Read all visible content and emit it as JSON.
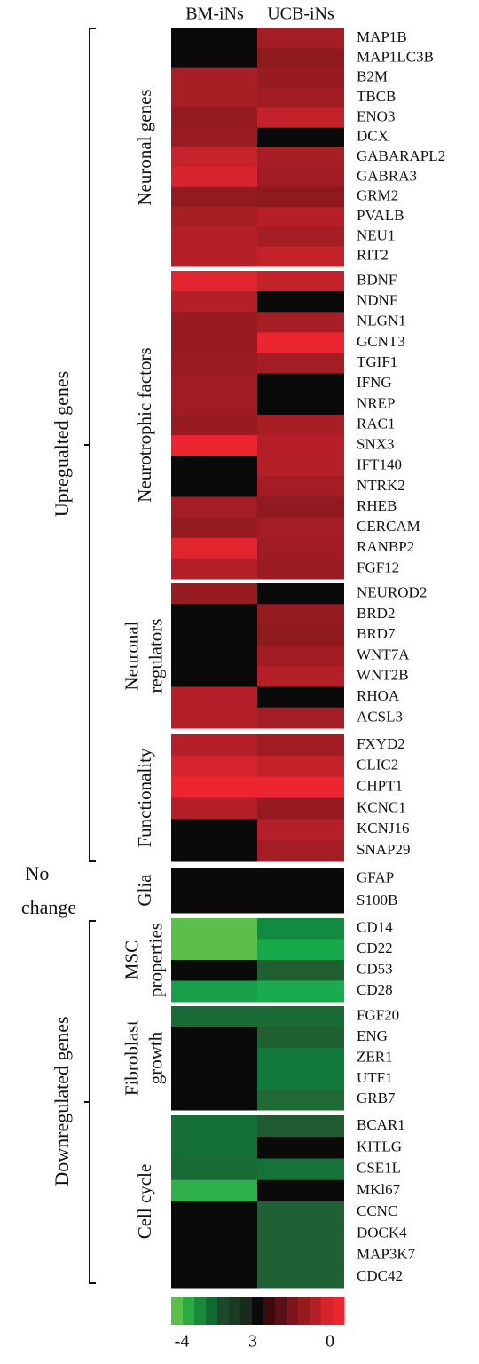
{
  "chart_data": {
    "type": "heatmap",
    "columns": [
      "BM-iNs",
      "UCB-iNs"
    ],
    "sections": [
      {
        "label": [
          "Upregualted genes"
        ]
      },
      {
        "label": [
          "No",
          "change"
        ]
      },
      {
        "label": [
          "Downregulated genes"
        ]
      }
    ],
    "groups": [
      {
        "label": [
          "Neuronal genes"
        ],
        "rows": [
          {
            "gene": "MAP1B",
            "colors": [
              "#0a0a0a",
              "#a51d24"
            ]
          },
          {
            "gene": "MAP1LC3B",
            "colors": [
              "#0a0a0a",
              "#8e1a1e"
            ]
          },
          {
            "gene": "B2M",
            "colors": [
              "#a81e25",
              "#981b21"
            ]
          },
          {
            "gene": "TBCB",
            "colors": [
              "#a81e25",
              "#a01c22"
            ]
          },
          {
            "gene": "ENO3",
            "colors": [
              "#961b20",
              "#c4222b"
            ]
          },
          {
            "gene": "DCX",
            "colors": [
              "#9a1b21",
              "#0a0a0a"
            ]
          },
          {
            "gene": "GABARAPL2",
            "colors": [
              "#c7232c",
              "#a81e25"
            ]
          },
          {
            "gene": "GABRA3",
            "colors": [
              "#d8242e",
              "#a01c22"
            ]
          },
          {
            "gene": "GRM2",
            "colors": [
              "#931a1f",
              "#8e1a1e"
            ]
          },
          {
            "gene": "PVALB",
            "colors": [
              "#a81e25",
              "#b71f28"
            ]
          },
          {
            "gene": "NEU1",
            "colors": [
              "#b51f27",
              "#a51d24"
            ]
          },
          {
            "gene": "RIT2",
            "colors": [
              "#b51f27",
              "#c4222b"
            ]
          }
        ]
      },
      {
        "label": [
          "Neurotrophic factors"
        ],
        "rows": [
          {
            "gene": "BDNF",
            "colors": [
              "#e0252f",
              "#c4222b"
            ]
          },
          {
            "gene": "NDNF",
            "colors": [
              "#b51f27",
              "#0a0a0a"
            ]
          },
          {
            "gene": "NLGN1",
            "colors": [
              "#981b21",
              "#a81e25"
            ]
          },
          {
            "gene": "GCNT3",
            "colors": [
              "#981b21",
              "#ec2530"
            ]
          },
          {
            "gene": "TGIF1",
            "colors": [
              "#9a1b21",
              "#a51d24"
            ]
          },
          {
            "gene": "IFNG",
            "colors": [
              "#9e1c22",
              "#0a0a0a"
            ]
          },
          {
            "gene": "NREP",
            "colors": [
              "#a01c22",
              "#0a0a0a"
            ]
          },
          {
            "gene": "RAC1",
            "colors": [
              "#981b21",
              "#a81e25"
            ]
          },
          {
            "gene": "SNX3",
            "colors": [
              "#ec2530",
              "#b71f28"
            ]
          },
          {
            "gene": "IFT140",
            "colors": [
              "#0a0a0a",
              "#b51f27"
            ]
          },
          {
            "gene": "NTRK2",
            "colors": [
              "#0a0a0a",
              "#a51d24"
            ]
          },
          {
            "gene": "RHEB",
            "colors": [
              "#a51d24",
              "#901a1f"
            ]
          },
          {
            "gene": "CERCAM",
            "colors": [
              "#961b20",
              "#a51d24"
            ]
          },
          {
            "gene": "RANBP2",
            "colors": [
              "#e0252f",
              "#a01c22"
            ]
          },
          {
            "gene": "FGF12",
            "colors": [
              "#b51f27",
              "#9a1b21"
            ]
          }
        ]
      },
      {
        "label": [
          "Neuronal",
          "regulators"
        ],
        "rows": [
          {
            "gene": "NEUROD2",
            "colors": [
              "#981b21",
              "#0a0a0a"
            ]
          },
          {
            "gene": "BRD2",
            "colors": [
              "#0a0a0a",
              "#961b20"
            ]
          },
          {
            "gene": "BRD7",
            "colors": [
              "#0a0a0a",
              "#8e1a1e"
            ]
          },
          {
            "gene": "WNT7A",
            "colors": [
              "#0a0a0a",
              "#a01c22"
            ]
          },
          {
            "gene": "WNT2B",
            "colors": [
              "#0a0a0a",
              "#b51f27"
            ]
          },
          {
            "gene": "RHOA",
            "colors": [
              "#b51f27",
              "#0a0a0a"
            ]
          },
          {
            "gene": "ACSL3",
            "colors": [
              "#b51f27",
              "#a51d24"
            ]
          }
        ]
      },
      {
        "label": [
          "Functionality"
        ],
        "rows": [
          {
            "gene": "FXYD2",
            "colors": [
              "#b51f27",
              "#a01c22"
            ]
          },
          {
            "gene": "CLIC2",
            "colors": [
              "#d8242e",
              "#c4222b"
            ]
          },
          {
            "gene": "CHPT1",
            "colors": [
              "#ec2530",
              "#ec2530"
            ]
          },
          {
            "gene": "KCNC1",
            "colors": [
              "#b51f27",
              "#961b20"
            ]
          },
          {
            "gene": "KCNJ16",
            "colors": [
              "#0a0a0a",
              "#b51f27"
            ]
          },
          {
            "gene": "SNAP29",
            "colors": [
              "#0a0a0a",
              "#a51d24"
            ]
          }
        ]
      },
      {
        "label": [
          "Glia"
        ],
        "rows": [
          {
            "gene": "GFAP",
            "colors": [
              "#0a0a0a",
              "#0a0a0a"
            ]
          },
          {
            "gene": "S100B",
            "colors": [
              "#0a0a0a",
              "#0a0a0a"
            ]
          }
        ]
      },
      {
        "label": [
          "MSC",
          "properties"
        ],
        "rows": [
          {
            "gene": "CD14",
            "colors": [
              "#5bbf4a",
              "#128a40"
            ]
          },
          {
            "gene": "CD22",
            "colors": [
              "#5bbf4a",
              "#17a84a"
            ]
          },
          {
            "gene": "CD53",
            "colors": [
              "#0a0a0a",
              "#1f5f30"
            ]
          },
          {
            "gene": "CD28",
            "colors": [
              "#16a04a",
              "#1aac4c"
            ]
          }
        ]
      },
      {
        "label": [
          "Fibroblast",
          "growth"
        ],
        "rows": [
          {
            "gene": "FGF20",
            "colors": [
              "#1a6a35",
              "#1a6a35"
            ]
          },
          {
            "gene": "ENG",
            "colors": [
              "#0a0a0a",
              "#1f5f30"
            ]
          },
          {
            "gene": "ZER1",
            "colors": [
              "#0a0a0a",
              "#127a3a"
            ]
          },
          {
            "gene": "UTF1",
            "colors": [
              "#0a0a0a",
              "#127a3a"
            ]
          },
          {
            "gene": "GRB7",
            "colors": [
              "#0a0a0a",
              "#1f6a35"
            ]
          }
        ]
      },
      {
        "label": [
          "Cell cycle"
        ],
        "rows": [
          {
            "gene": "BCAR1",
            "colors": [
              "#147038",
              "#1f5a30"
            ]
          },
          {
            "gene": "KITLG",
            "colors": [
              "#147038",
              "#0a0a0a"
            ]
          },
          {
            "gene": "CSE1L",
            "colors": [
              "#1a6a35",
              "#157238"
            ]
          },
          {
            "gene": "MKl67",
            "colors": [
              "#2eb04a",
              "#0a0a0a"
            ]
          },
          {
            "gene": "CCNC",
            "colors": [
              "#0a0a0a",
              "#1f6035"
            ]
          },
          {
            "gene": "DOCK4",
            "colors": [
              "#0a0a0a",
              "#1f6035"
            ]
          },
          {
            "gene": "MAP3K7",
            "colors": [
              "#0a0a0a",
              "#1f6035"
            ]
          },
          {
            "gene": "CDC42",
            "colors": [
              "#0a0a0a",
              "#1f6035"
            ]
          }
        ]
      }
    ],
    "scale_colors": [
      "#5bbf4a",
      "#2eaa45",
      "#1a8a3a",
      "#146a30",
      "#1a4a2a",
      "#1a3a22",
      "#1a2a1c",
      "#0a0a0a",
      "#3a0a0e",
      "#5a1016",
      "#7a161c",
      "#961b20",
      "#b51f27",
      "#d8242e",
      "#ec2530"
    ],
    "scale_labels": [
      -4,
      3,
      0
    ]
  }
}
